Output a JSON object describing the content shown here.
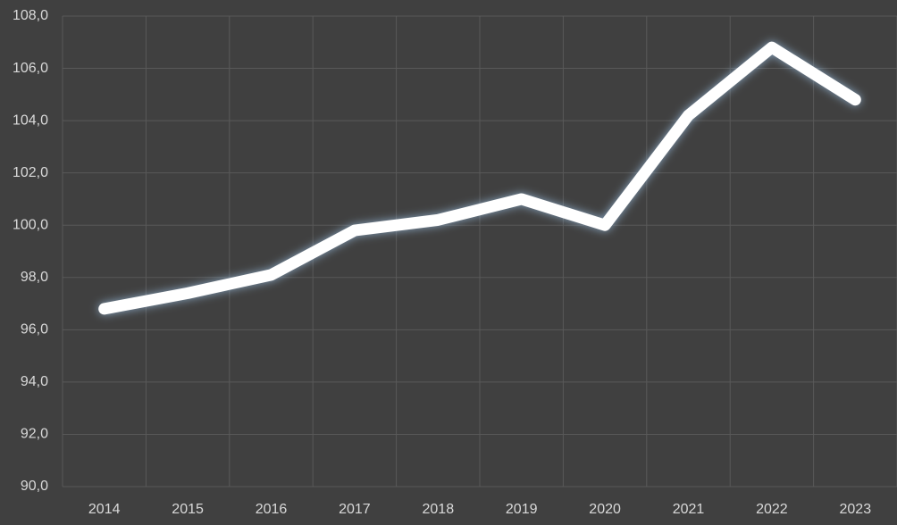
{
  "chart_data": {
    "type": "line",
    "categories": [
      "2014",
      "2015",
      "2016",
      "2017",
      "2018",
      "2019",
      "2020",
      "2021",
      "2022",
      "2023"
    ],
    "values": [
      96.8,
      97.4,
      98.1,
      99.8,
      100.2,
      101.0,
      100.0,
      104.2,
      106.8,
      104.8
    ],
    "color": "#ffffff",
    "ylim": [
      90,
      108
    ],
    "yticks": [
      {
        "value": 90,
        "label": "90,0"
      },
      {
        "value": 92,
        "label": "92,0"
      },
      {
        "value": 94,
        "label": "94,0"
      },
      {
        "value": 96,
        "label": "96,0"
      },
      {
        "value": 98,
        "label": "98,0"
      },
      {
        "value": 100,
        "label": "100,0"
      },
      {
        "value": 102,
        "label": "102,0"
      },
      {
        "value": 104,
        "label": "104,0"
      },
      {
        "value": 106,
        "label": "106,0"
      },
      {
        "value": 108,
        "label": "108,0"
      }
    ],
    "grid": true
  }
}
